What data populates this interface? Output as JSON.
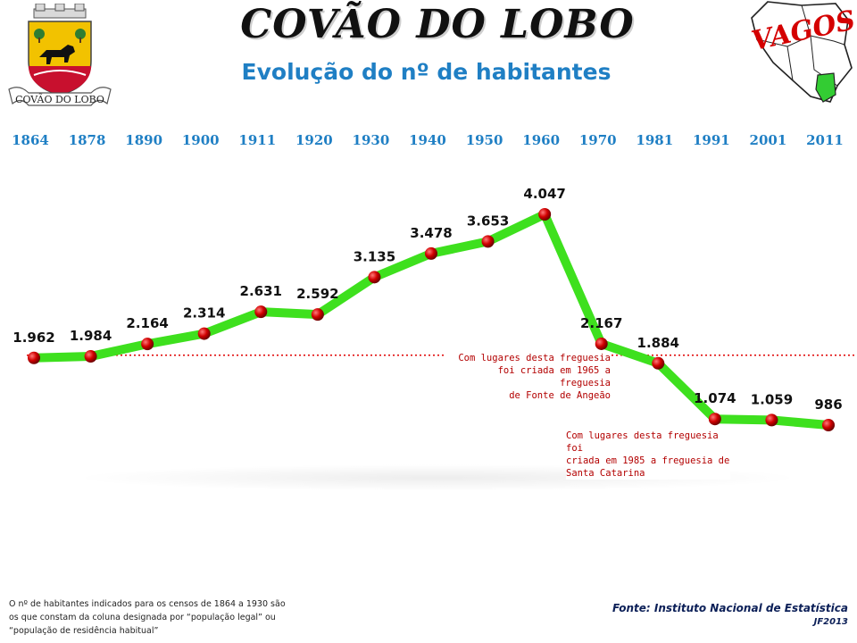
{
  "header": {
    "title": "COVÃO DO LOBO",
    "subtitle": "Evolução do nº de habitantes",
    "crest_label": "COVÃO DO LOBO",
    "map_label": "VAGOS"
  },
  "chart_data": {
    "type": "line",
    "title": "Evolução do nº de habitantes",
    "categories": [
      "1864",
      "1878",
      "1890",
      "1900",
      "1911",
      "1920",
      "1930",
      "1940",
      "1950",
      "1960",
      "1970",
      "1981",
      "1991",
      "2001",
      "2011"
    ],
    "values": [
      1962,
      1984,
      2164,
      2314,
      2631,
      2592,
      3135,
      3478,
      3653,
      4047,
      2167,
      1884,
      1074,
      1059,
      986
    ],
    "value_labels": [
      "1.962",
      "1.984",
      "2.164",
      "2.314",
      "2.631",
      "2.592",
      "3.135",
      "3.478",
      "3.653",
      "4.047",
      "2.167",
      "1.884",
      "1.074",
      "1.059",
      "986"
    ],
    "ylim": [
      0,
      4200
    ],
    "reference_line": 1962,
    "colors": {
      "line": "#3ee01e",
      "marker": "#cc0000",
      "category_labels": "#1f7fc4",
      "reference": "#e00000"
    },
    "grid": false,
    "legend": "none"
  },
  "annotations": [
    {
      "lines": [
        "Com lugares desta freguesia",
        "foi criada em 1965 a freguesia",
        "de Fonte de Angeão"
      ]
    },
    {
      "lines": [
        "Com lugares desta freguesia foi",
        "criada em 1985 a freguesia de",
        "Santa Catarina"
      ]
    }
  ],
  "footer": {
    "note": "O nº de habitantes indicados para os censos de 1864 a 1930 são os que constam da coluna designada por “população legal” ou “população de residência habitual”",
    "source": "Fonte: Instituto Nacional de Estatística",
    "credit": "JF2013"
  }
}
